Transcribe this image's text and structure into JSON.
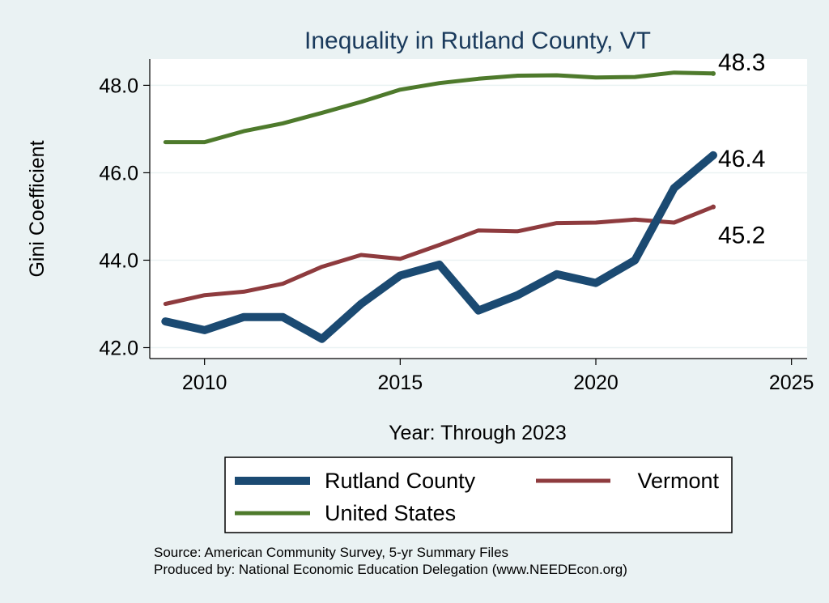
{
  "chart_data": {
    "type": "line",
    "title": "Inequality in Rutland County, VT",
    "xlabel": "Year: Through 2023",
    "ylabel": "Gini Coefficient",
    "xlim": [
      2008.6,
      2025.4
    ],
    "ylim": [
      41.75,
      48.6
    ],
    "x_ticks": [
      2010,
      2015,
      2020,
      2025
    ],
    "y_ticks": [
      42.0,
      44.0,
      46.0,
      48.0
    ],
    "y_tick_labels": [
      "42.0",
      "44.0",
      "46.0",
      "48.0"
    ],
    "grid": true,
    "legend_position": "bottom",
    "x": [
      2009,
      2010,
      2011,
      2012,
      2013,
      2014,
      2015,
      2016,
      2017,
      2018,
      2019,
      2020,
      2021,
      2022,
      2023
    ],
    "series": [
      {
        "name": "Rutland County",
        "color": "#1b4a72",
        "width": "thick",
        "values": [
          42.6,
          42.4,
          42.7,
          42.7,
          42.2,
          43.0,
          43.65,
          43.9,
          42.85,
          43.2,
          43.68,
          43.48,
          44.0,
          45.65,
          46.4
        ],
        "end_label": "46.4"
      },
      {
        "name": "Vermont",
        "color": "#8e3b3e",
        "width": "medium",
        "values": [
          43.0,
          43.2,
          43.28,
          43.46,
          43.85,
          44.12,
          44.03,
          44.35,
          44.68,
          44.66,
          44.85,
          44.86,
          44.93,
          44.86,
          45.22
        ],
        "end_label": "45.2"
      },
      {
        "name": "United States",
        "color": "#4e7a2c",
        "width": "medium",
        "values": [
          46.7,
          46.7,
          46.95,
          47.13,
          47.37,
          47.62,
          47.9,
          48.05,
          48.15,
          48.22,
          48.23,
          48.18,
          48.19,
          48.29,
          48.27
        ],
        "end_label": "48.3"
      }
    ]
  },
  "source_lines": [
    "Source: American Community Survey, 5-yr Summary Files",
    "Produced by: National Economic Education Delegation (www.NEEDEcon.org)"
  ]
}
